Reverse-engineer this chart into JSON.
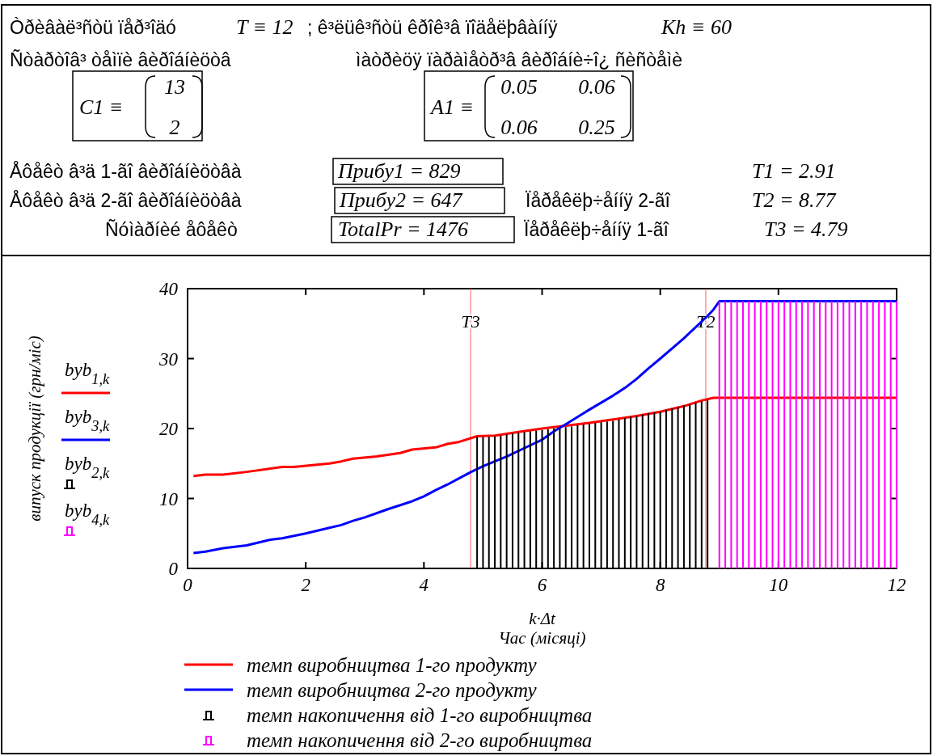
{
  "chart_data": {
    "type": "line",
    "xlabel": "k·Δt\nЧас (місяці)",
    "xlim": [
      0,
      12
    ],
    "xticks": [
      0,
      2,
      4,
      6,
      8,
      10,
      12
    ],
    "ylim": [
      0,
      40
    ],
    "yticks": [
      0,
      10,
      20,
      30,
      40
    ],
    "grid": false,
    "legend": "bottom",
    "marker": "none",
    "line_style": "solid",
    "series": [
      {
        "name": "темп виробництва 1-го продукту",
        "color": "#ff0000",
        "x": [
          0.1,
          0.3,
          0.6,
          1,
          1.6,
          1.8,
          2.4,
          2.6,
          2.8,
          3.2,
          3.6,
          3.8,
          4.2,
          4.4,
          4.6,
          4.9,
          5.2,
          5.6,
          6,
          6.4,
          6.8,
          7.2,
          7.6,
          8,
          8.4,
          8.7,
          8.9,
          12
        ],
        "values": [
          13.2,
          13.4,
          13.4,
          13.8,
          14.5,
          14.5,
          15,
          15.3,
          15.7,
          16,
          16.5,
          17,
          17.3,
          17.8,
          18.1,
          18.9,
          19,
          19.5,
          20,
          20.4,
          20.8,
          21.3,
          21.8,
          22.4,
          23.2,
          24,
          24.4,
          24.4
        ]
      },
      {
        "name": "темп виробництва 2-го продукту",
        "color": "#0000ff",
        "x": [
          0.1,
          0.3,
          0.6,
          1,
          1.4,
          1.6,
          2,
          2.4,
          2.6,
          2.8,
          3,
          3.4,
          3.8,
          4,
          4.2,
          4.4,
          4.6,
          4.8,
          5,
          5.4,
          5.8,
          6,
          6.2,
          6.4,
          6.8,
          7.2,
          7.4,
          7.6,
          7.8,
          8,
          8.4,
          8.8,
          8.9,
          9,
          12
        ],
        "values": [
          2.2,
          2.4,
          2.9,
          3.3,
          4.1,
          4.3,
          5,
          5.8,
          6.2,
          6.8,
          7.3,
          8.5,
          9.6,
          10.3,
          11.2,
          12,
          12.9,
          13.8,
          14.6,
          16,
          17.6,
          18.4,
          19.6,
          20.6,
          22.7,
          24.7,
          25.8,
          27.1,
          28.6,
          30,
          32.9,
          36.1,
          37,
          38.2,
          38.2
        ]
      },
      {
        "name": "темп накопичення від 1-го виробництва",
        "type": "bar",
        "color": "#000000",
        "x": [
          4.9,
          5,
          5.1,
          5.2,
          5.3,
          5.4,
          5.5,
          5.6,
          5.7,
          5.8,
          5.9,
          6,
          6.1,
          6.2,
          6.3,
          6.4,
          6.5,
          6.6,
          6.7,
          6.8,
          6.9,
          7,
          7.1,
          7.2,
          7.3,
          7.4,
          7.5,
          7.6,
          7.7,
          7.8,
          7.9,
          8,
          8.1,
          8.2,
          8.3,
          8.4,
          8.5,
          8.6,
          8.7,
          8.8
        ],
        "values": [
          18.8,
          18.8,
          18.8,
          18.9,
          19,
          19.2,
          19.3,
          19.4,
          19.5,
          19.6,
          19.7,
          19.8,
          19.9,
          20,
          20.1,
          20.2,
          20.3,
          20.5,
          20.6,
          20.7,
          20.8,
          20.9,
          21,
          21.1,
          21.3,
          21.5,
          21.7,
          21.8,
          22,
          22.2,
          22.3,
          22.4,
          22.7,
          22.9,
          23.1,
          23.3,
          23.5,
          23.7,
          23.9,
          24.1
        ]
      },
      {
        "name": "темп накопичення від 2-го виробництва",
        "type": "bar",
        "color": "#ff00ff",
        "x": [
          9,
          9.1,
          9.2,
          9.3,
          9.4,
          9.5,
          9.6,
          9.7,
          9.8,
          9.9,
          10,
          10.1,
          10.2,
          10.3,
          10.4,
          10.5,
          10.6,
          10.7,
          10.8,
          10.9,
          11,
          11.1,
          11.2,
          11.3,
          11.4,
          11.5,
          11.6,
          11.7,
          11.8,
          11.9,
          12
        ],
        "values": [
          38.2,
          38.2,
          38.2,
          38.2,
          38.2,
          38.2,
          38.2,
          38.2,
          38.2,
          38.2,
          38.2,
          38.2,
          38.2,
          38.2,
          38.2,
          38.2,
          38.2,
          38.2,
          38.2,
          38.2,
          38.2,
          38.2,
          38.2,
          38.2,
          38.2,
          38.2,
          38.2,
          38.2,
          38.2,
          38.2,
          38.2
        ]
      }
    ],
    "ref_lines": [
      {
        "axis": "x",
        "value": 4.79,
        "label": "T3",
        "color": "#ff6060"
      },
      {
        "axis": "x",
        "value": 8.77,
        "label": "T2",
        "color": "#ff6060"
      }
    ],
    "annotations": [
      "Òðèâàë³ñòü ïåð³îäó",
      "T ≡ 12",
      "; ê³ëüê³ñòü êðîê³â ïîäåëþâàííÿ",
      "Kh ≡ 60",
      "Ñòàðòîâ³ òåìïè âèðîáíèöòâ",
      "ìàòðèöÿ ïàðàìåòð³â âèðîáíè÷î¿ ñèñòåìè",
      "C1 ≡",
      "13",
      "2",
      "A1 ≡",
      "0.05",
      "0.06",
      "0.06",
      "0.25",
      "Åôåêò â³ä 1-ãî âèðîáíèöòâà",
      "Прибу1 = 829",
      "T1 = 2.91",
      "Åôåêò â³ä 2-ãî âèðîáíèöòâà",
      "Прибу2 = 647",
      "Ïåðåêëþ÷åííÿ 2-ãî",
      "T2 = 8.77",
      "Ñóìàðíèé åôåêò",
      "TotalPr = 1476",
      "Ïåðåêëþ÷åííÿ 1-ãî",
      "T3 = 4.79",
      "byb$_{1,k}$",
      "byb$_{3,k}$",
      "byb$_{2,k}$",
      "byb$_{4,k}$",
      "випуск продукції (грн/міс)"
    ]
  }
}
